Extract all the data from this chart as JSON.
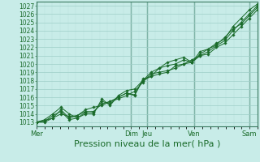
{
  "bg_color": "#c8ece8",
  "grid_major_color": "#9ecec8",
  "grid_minor_color": "#b8e0db",
  "line_color": "#1a6b2a",
  "marker_color": "#1a6b2a",
  "xlabel_label": "Pression niveau de la mer( hPa )",
  "xlabel_fontsize": 8,
  "tick_fontsize": 5.5,
  "ylim": [
    1012.5,
    1027.5
  ],
  "yticks": [
    1013,
    1014,
    1015,
    1016,
    1017,
    1018,
    1019,
    1020,
    1021,
    1022,
    1023,
    1024,
    1025,
    1026,
    1027
  ],
  "xlim": [
    0,
    28
  ],
  "day_labels": [
    "Mer",
    "Dim",
    "Jeu",
    "Ven",
    "Sam"
  ],
  "day_tick_positions": [
    0,
    12,
    14,
    20,
    27
  ],
  "day_vline_positions": [
    0,
    12,
    14,
    20,
    27
  ],
  "series": [
    [
      1013.0,
      1013.1,
      1013.8,
      1014.3,
      1013.3,
      1013.5,
      1014.2,
      1014.3,
      1015.2,
      1015.5,
      1016.0,
      1016.5,
      1016.3,
      1018.0,
      1018.5,
      1018.8,
      1019.0,
      1019.8,
      1020.0,
      1020.2,
      1021.0,
      1021.5,
      1022.2,
      1022.8,
      1024.0,
      1025.0,
      1026.0,
      1027.0
    ],
    [
      1013.0,
      1013.2,
      1013.5,
      1014.0,
      1013.7,
      1013.8,
      1014.5,
      1014.8,
      1015.0,
      1015.5,
      1015.8,
      1016.2,
      1016.7,
      1017.8,
      1018.8,
      1019.0,
      1019.2,
      1019.5,
      1020.0,
      1020.5,
      1021.0,
      1021.2,
      1022.0,
      1022.5,
      1023.5,
      1024.5,
      1025.5,
      1026.5
    ],
    [
      1013.0,
      1013.0,
      1013.5,
      1014.5,
      1013.5,
      1013.8,
      1014.3,
      1014.2,
      1015.5,
      1015.2,
      1016.0,
      1016.5,
      1016.2,
      1018.2,
      1018.5,
      1019.5,
      1019.8,
      1020.0,
      1020.5,
      1020.2,
      1021.5,
      1021.8,
      1022.5,
      1023.0,
      1024.5,
      1025.5,
      1026.5,
      1027.2
    ],
    [
      1013.0,
      1013.3,
      1014.0,
      1014.8,
      1014.0,
      1013.5,
      1014.0,
      1014.0,
      1015.8,
      1015.0,
      1016.2,
      1016.8,
      1017.0,
      1018.0,
      1019.0,
      1019.5,
      1020.2,
      1020.5,
      1020.8,
      1020.2,
      1021.2,
      1021.8,
      1022.3,
      1023.2,
      1024.2,
      1024.8,
      1025.8,
      1026.8
    ]
  ]
}
